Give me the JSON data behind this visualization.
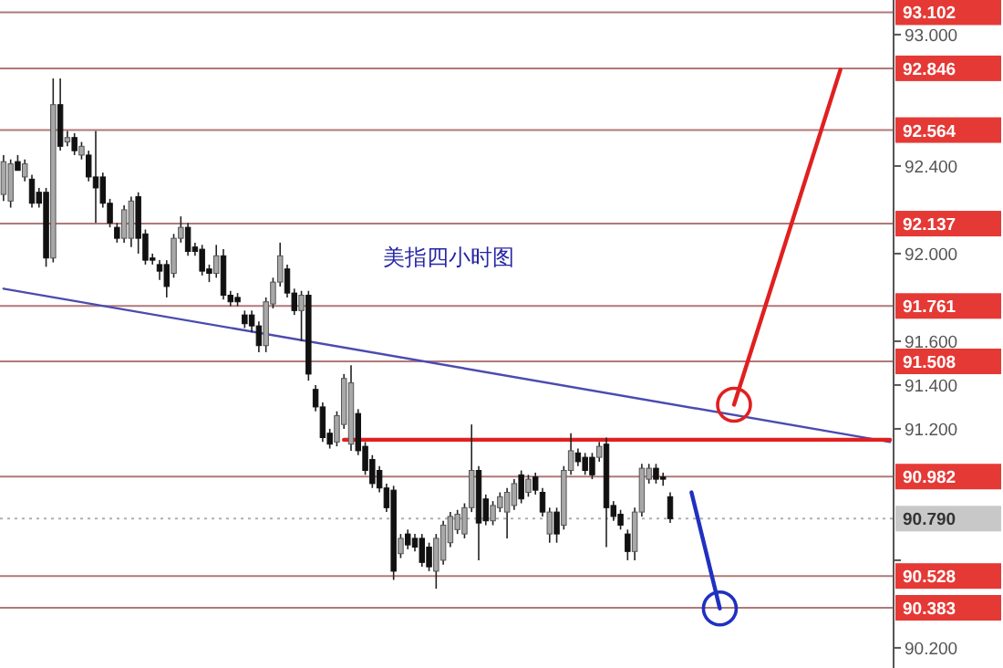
{
  "chart_data": {
    "type": "candlestick",
    "title": "美指四小时图",
    "categories": [
      null,
      null,
      null,
      null,
      null,
      null,
      null,
      null,
      null,
      null,
      null,
      null,
      null,
      null,
      null,
      null,
      null,
      null,
      null,
      null,
      null,
      null,
      null,
      null,
      null,
      null,
      null,
      null,
      null,
      null,
      null,
      null,
      null,
      null,
      null,
      null,
      null,
      null,
      null,
      null,
      null,
      null,
      null,
      null,
      null,
      null,
      null,
      null,
      null,
      null,
      null,
      null,
      null,
      null,
      null,
      null,
      null,
      null,
      null,
      null,
      null,
      null,
      null,
      null,
      null,
      null,
      null,
      null,
      null,
      null,
      null,
      null,
      null,
      null,
      null,
      null,
      null,
      null,
      null,
      null,
      null,
      null,
      null,
      null,
      null,
      null,
      null,
      null,
      null,
      null,
      null,
      null,
      null,
      null,
      null,
      null,
      null,
      null,
      null,
      null,
      null,
      null,
      null,
      null,
      null,
      null,
      null,
      null,
      null,
      null,
      null,
      null,
      null,
      null,
      null,
      null,
      null,
      null,
      null,
      null,
      null,
      null,
      null,
      null,
      null,
      null
    ],
    "ohlc": [
      [
        92.27,
        92.45,
        92.24,
        92.42
      ],
      [
        92.24,
        92.43,
        92.21,
        92.41
      ],
      [
        92.42,
        92.45,
        92.38,
        92.38
      ],
      [
        92.35,
        92.43,
        92.33,
        92.41
      ],
      [
        92.34,
        92.36,
        92.21,
        92.23
      ],
      [
        92.28,
        92.3,
        92.21,
        92.23
      ],
      [
        92.28,
        92.3,
        91.94,
        91.98
      ],
      [
        91.98,
        92.8,
        91.96,
        92.68
      ],
      [
        92.68,
        92.8,
        92.47,
        92.49
      ],
      [
        92.51,
        92.56,
        92.49,
        92.53
      ],
      [
        92.53,
        92.55,
        92.45,
        92.47
      ],
      [
        92.45,
        92.51,
        92.43,
        92.49
      ],
      [
        92.45,
        92.47,
        92.33,
        92.35
      ],
      [
        92.35,
        92.56,
        92.14,
        92.3
      ],
      [
        92.35,
        92.37,
        92.21,
        92.23
      ],
      [
        92.23,
        92.25,
        92.12,
        92.14
      ],
      [
        92.12,
        92.14,
        92.05,
        92.07
      ],
      [
        92.07,
        92.22,
        92.05,
        92.2
      ],
      [
        92.07,
        92.26,
        92.03,
        92.24
      ],
      [
        92.26,
        92.28,
        92.0,
        92.07
      ],
      [
        92.09,
        92.11,
        91.95,
        91.97
      ],
      [
        91.98,
        92.0,
        91.95,
        91.97
      ],
      [
        91.95,
        91.97,
        91.88,
        91.92
      ],
      [
        91.95,
        91.97,
        91.8,
        91.85
      ],
      [
        91.91,
        92.09,
        91.89,
        92.07
      ],
      [
        92.07,
        92.17,
        92.05,
        92.12
      ],
      [
        92.12,
        92.14,
        91.99,
        92.01
      ],
      [
        92.03,
        92.05,
        91.99,
        92.01
      ],
      [
        92.02,
        92.04,
        91.9,
        91.92
      ],
      [
        91.93,
        91.95,
        91.87,
        91.91
      ],
      [
        91.91,
        92.04,
        91.89,
        91.99
      ],
      [
        91.99,
        92.02,
        91.79,
        91.81
      ],
      [
        91.81,
        91.83,
        91.76,
        91.78
      ],
      [
        91.8,
        91.82,
        91.76,
        91.78
      ],
      [
        91.72,
        91.74,
        91.66,
        91.68
      ],
      [
        91.72,
        91.74,
        91.64,
        91.67
      ],
      [
        91.67,
        91.69,
        91.55,
        91.58
      ],
      [
        91.58,
        91.8,
        91.55,
        91.78
      ],
      [
        91.77,
        91.89,
        91.75,
        91.87
      ],
      [
        91.87,
        92.05,
        91.85,
        91.99
      ],
      [
        91.93,
        91.95,
        91.8,
        91.82
      ],
      [
        91.82,
        91.84,
        91.72,
        91.74
      ],
      [
        91.74,
        91.83,
        91.6,
        91.81
      ],
      [
        91.81,
        91.83,
        91.42,
        91.45
      ],
      [
        91.38,
        91.4,
        91.28,
        91.3
      ],
      [
        91.3,
        91.32,
        91.14,
        91.16
      ],
      [
        91.18,
        91.2,
        91.11,
        91.13
      ],
      [
        91.14,
        91.28,
        91.12,
        91.26
      ],
      [
        91.22,
        91.45,
        91.2,
        91.43
      ],
      [
        91.13,
        91.49,
        91.1,
        91.41
      ],
      [
        91.27,
        91.29,
        91.08,
        91.1
      ],
      [
        91.12,
        91.14,
        90.99,
        91.01
      ],
      [
        91.06,
        91.08,
        90.93,
        90.95
      ],
      [
        91.01,
        91.03,
        90.91,
        90.93
      ],
      [
        90.93,
        90.95,
        90.82,
        90.84
      ],
      [
        90.92,
        90.94,
        90.51,
        90.55
      ],
      [
        90.63,
        90.72,
        90.61,
        90.7
      ],
      [
        90.72,
        90.74,
        90.65,
        90.67
      ],
      [
        90.7,
        90.72,
        90.64,
        90.66
      ],
      [
        90.7,
        90.72,
        90.57,
        90.59
      ],
      [
        90.66,
        90.68,
        90.55,
        90.57
      ],
      [
        90.55,
        90.72,
        90.47,
        90.7
      ],
      [
        90.6,
        90.78,
        90.58,
        90.76
      ],
      [
        90.68,
        90.82,
        90.66,
        90.8
      ],
      [
        90.74,
        90.83,
        90.72,
        90.81
      ],
      [
        90.72,
        90.86,
        90.7,
        90.84
      ],
      [
        90.84,
        91.22,
        90.82,
        91.01
      ],
      [
        91.01,
        91.03,
        90.6,
        90.77
      ],
      [
        90.88,
        90.9,
        90.76,
        90.78
      ],
      [
        90.78,
        90.87,
        90.76,
        90.85
      ],
      [
        90.84,
        90.91,
        90.82,
        90.89
      ],
      [
        90.82,
        90.93,
        90.7,
        90.91
      ],
      [
        90.85,
        90.97,
        90.83,
        90.95
      ],
      [
        90.99,
        91.01,
        90.86,
        90.88
      ],
      [
        90.91,
        90.99,
        90.89,
        90.97
      ],
      [
        90.98,
        91.0,
        90.9,
        90.92
      ],
      [
        90.91,
        90.93,
        90.8,
        90.82
      ],
      [
        90.72,
        90.84,
        90.68,
        90.82
      ],
      [
        90.82,
        90.84,
        90.68,
        90.72
      ],
      [
        90.76,
        91.03,
        90.74,
        91.01
      ],
      [
        91.01,
        91.18,
        90.99,
        91.1
      ],
      [
        91.09,
        91.11,
        91.03,
        91.05
      ],
      [
        91.07,
        91.09,
        90.99,
        91.01
      ],
      [
        91.07,
        91.09,
        90.97,
        90.99
      ],
      [
        91.07,
        91.14,
        91.05,
        91.12
      ],
      [
        91.13,
        91.16,
        90.66,
        90.84
      ],
      [
        90.85,
        90.87,
        90.78,
        90.8
      ],
      [
        90.81,
        90.83,
        90.74,
        90.76
      ],
      [
        90.72,
        90.74,
        90.6,
        90.64
      ],
      [
        90.64,
        90.84,
        90.6,
        90.82
      ],
      [
        90.82,
        91.04,
        90.8,
        91.02
      ],
      [
        90.97,
        91.04,
        90.95,
        91.02
      ],
      [
        91.02,
        91.04,
        90.95,
        90.97
      ],
      [
        90.98,
        91.0,
        90.94,
        90.97
      ],
      [
        90.89,
        90.91,
        90.77,
        90.79
      ],
      null,
      null,
      null,
      null,
      null,
      null,
      null,
      null,
      null,
      null,
      null,
      null,
      null,
      null,
      null,
      null,
      null,
      null,
      null,
      null,
      null,
      null,
      null,
      null,
      null,
      null,
      null,
      null,
      null,
      null,
      null
    ],
    "series": [
      {
        "type": "line",
        "color": "#4b4bb0",
        "values": [
          91.84,
          null,
          null,
          null,
          null,
          null,
          null,
          null,
          null,
          null,
          null,
          null,
          null,
          null,
          null,
          null,
          null,
          null,
          null,
          null,
          null,
          null,
          null,
          null,
          null,
          null,
          null,
          null,
          null,
          null,
          null,
          null,
          null,
          null,
          null,
          null,
          null,
          null,
          null,
          null,
          null,
          null,
          null,
          null,
          null,
          null,
          null,
          null,
          null,
          null,
          null,
          null,
          null,
          null,
          null,
          null,
          null,
          null,
          null,
          null,
          null,
          null,
          null,
          null,
          null,
          null,
          null,
          null,
          null,
          null,
          null,
          null,
          null,
          null,
          null,
          null,
          null,
          null,
          null,
          null,
          null,
          null,
          null,
          null,
          null,
          null,
          null,
          null,
          null,
          null,
          null,
          null,
          null,
          null,
          null,
          null,
          null,
          null,
          null,
          null,
          null,
          null,
          null,
          null,
          null,
          null,
          null,
          null,
          null,
          null,
          null,
          null,
          null,
          null,
          null,
          null,
          null,
          null,
          null,
          null,
          null,
          null,
          null,
          null,
          null,
          91.14
        ]
      },
      {
        "type": "line",
        "color": "#e02020",
        "values": [
          null,
          null,
          null,
          null,
          null,
          null,
          null,
          null,
          null,
          null,
          null,
          null,
          null,
          null,
          null,
          null,
          null,
          null,
          null,
          null,
          null,
          null,
          null,
          null,
          null,
          null,
          null,
          null,
          null,
          null,
          null,
          null,
          null,
          null,
          null,
          null,
          null,
          null,
          null,
          null,
          null,
          null,
          null,
          null,
          null,
          null,
          null,
          null,
          91.15,
          null,
          null,
          null,
          null,
          null,
          null,
          null,
          null,
          null,
          null,
          null,
          null,
          null,
          null,
          null,
          null,
          null,
          null,
          null,
          null,
          null,
          null,
          null,
          null,
          null,
          null,
          null,
          null,
          null,
          null,
          null,
          null,
          null,
          null,
          null,
          null,
          null,
          null,
          null,
          null,
          null,
          null,
          null,
          null,
          null,
          null,
          null,
          null,
          null,
          null,
          null,
          null,
          null,
          null,
          null,
          null,
          null,
          null,
          null,
          null,
          null,
          null,
          null,
          null,
          null,
          null,
          null,
          null,
          null,
          null,
          null,
          null,
          null,
          null,
          null,
          null,
          91.15
        ]
      },
      {
        "type": "line",
        "color": "#e02020",
        "marker": "circle",
        "values": [
          null,
          null,
          null,
          null,
          null,
          null,
          null,
          null,
          null,
          null,
          null,
          null,
          null,
          null,
          null,
          null,
          null,
          null,
          null,
          null,
          null,
          null,
          null,
          null,
          null,
          null,
          null,
          null,
          null,
          null,
          null,
          null,
          null,
          null,
          null,
          null,
          null,
          null,
          null,
          null,
          null,
          null,
          null,
          null,
          null,
          null,
          null,
          null,
          null,
          null,
          null,
          null,
          null,
          null,
          null,
          null,
          null,
          null,
          null,
          null,
          null,
          null,
          null,
          null,
          null,
          null,
          null,
          null,
          null,
          null,
          null,
          null,
          null,
          null,
          null,
          null,
          null,
          null,
          null,
          null,
          null,
          null,
          null,
          null,
          null,
          null,
          null,
          null,
          null,
          null,
          null,
          null,
          null,
          null,
          null,
          null,
          null,
          null,
          null,
          null,
          null,
          null,
          null,
          91.31,
          null,
          null,
          null,
          null,
          null,
          null,
          null,
          null,
          null,
          null,
          null,
          null,
          null,
          null,
          92.84,
          null,
          null,
          null,
          null,
          null,
          null,
          null
        ]
      },
      {
        "type": "line",
        "color": "#2030c0",
        "marker": "circle",
        "values": [
          null,
          null,
          null,
          null,
          null,
          null,
          null,
          null,
          null,
          null,
          null,
          null,
          null,
          null,
          null,
          null,
          null,
          null,
          null,
          null,
          null,
          null,
          null,
          null,
          null,
          null,
          null,
          null,
          null,
          null,
          null,
          null,
          null,
          null,
          null,
          null,
          null,
          null,
          null,
          null,
          null,
          null,
          null,
          null,
          null,
          null,
          null,
          null,
          null,
          null,
          null,
          null,
          null,
          null,
          null,
          null,
          null,
          null,
          null,
          null,
          null,
          null,
          null,
          null,
          null,
          null,
          null,
          null,
          null,
          null,
          null,
          null,
          null,
          null,
          null,
          null,
          null,
          null,
          null,
          null,
          null,
          null,
          null,
          null,
          null,
          null,
          null,
          null,
          null,
          null,
          null,
          null,
          null,
          null,
          null,
          null,
          null,
          90.91,
          null,
          null,
          null,
          90.38,
          null,
          null,
          null,
          null,
          null,
          null,
          null,
          null,
          null,
          null,
          null,
          null,
          null,
          null,
          null,
          null,
          null,
          null,
          null,
          null,
          null,
          null,
          null,
          null
        ]
      }
    ],
    "ref_lines": [
      {
        "axis": "y",
        "value": 93.102,
        "label": "93.102",
        "color": "#b07878"
      },
      {
        "axis": "y",
        "value": 92.846,
        "label": "92.846",
        "color": "#b07878"
      },
      {
        "axis": "y",
        "value": 92.564,
        "label": "92.564",
        "color": "#b07878"
      },
      {
        "axis": "y",
        "value": 92.137,
        "label": "92.137",
        "color": "#b07878"
      },
      {
        "axis": "y",
        "value": 91.761,
        "label": "91.761",
        "color": "#b07878"
      },
      {
        "axis": "y",
        "value": 91.508,
        "label": "91.508",
        "color": "#b07878"
      },
      {
        "axis": "y",
        "value": 90.982,
        "label": "90.982",
        "color": "#b07878"
      },
      {
        "axis": "y",
        "value": 90.79,
        "label": "90.790",
        "color": "#b0b0b0",
        "line_style": "dotted"
      },
      {
        "axis": "y",
        "value": 90.528,
        "label": "90.528",
        "color": "#b07878"
      },
      {
        "axis": "y",
        "value": 90.383,
        "label": "90.383",
        "color": "#b07878"
      }
    ],
    "ylim": [
      90.108,
      93.158
    ],
    "yticks": [
      {
        "value": 93,
        "label": "93.000"
      },
      {
        "value": 92.4,
        "label": "92.400"
      },
      {
        "value": 92,
        "label": "92.000"
      },
      {
        "value": 91.6,
        "label": "91.600"
      },
      {
        "value": 91.4,
        "label": "91.400"
      },
      {
        "value": 91.2,
        "label": "91.200"
      },
      {
        "value": 90.6,
        "label": null
      },
      {
        "value": 90.2,
        "label": "90.200"
      }
    ],
    "tick_labels": "y",
    "grid": false
  }
}
